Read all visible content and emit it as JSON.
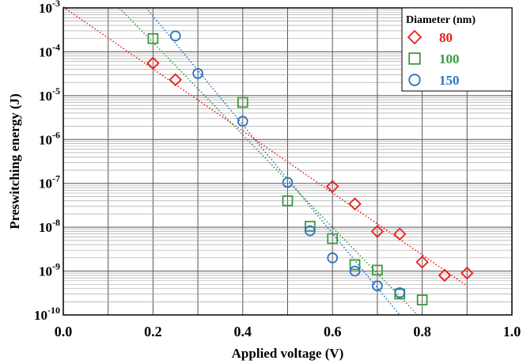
{
  "chart_data": {
    "type": "scatter",
    "xlabel": "Applied voltage (V)",
    "ylabel": "Preswitching energy (J)",
    "xlim": [
      0.0,
      1.0
    ],
    "ylim": [
      1e-10,
      0.001
    ],
    "y_scale": "log",
    "grid": true,
    "x_ticks": [
      {
        "value": 0.0,
        "label": "0.0"
      },
      {
        "value": 0.2,
        "label": "0.2"
      },
      {
        "value": 0.4,
        "label": "0.4"
      },
      {
        "value": 0.6,
        "label": "0.6"
      },
      {
        "value": 0.8,
        "label": "0.8"
      },
      {
        "value": 1.0,
        "label": "1.0"
      }
    ],
    "y_ticks": [
      {
        "value": 0.001,
        "base": "10",
        "exp": "-3"
      },
      {
        "value": 0.0001,
        "base": "10",
        "exp": "-4"
      },
      {
        "value": 1e-05,
        "base": "10",
        "exp": "-5"
      },
      {
        "value": 1e-06,
        "base": "10",
        "exp": "-6"
      },
      {
        "value": 1e-07,
        "base": "10",
        "exp": "-7"
      },
      {
        "value": 1e-08,
        "base": "10",
        "exp": "-8"
      },
      {
        "value": 1e-09,
        "base": "10",
        "exp": "-9"
      },
      {
        "value": 1e-10,
        "base": "10",
        "exp": "-10"
      }
    ],
    "legend": {
      "title": "Diameter (nm)",
      "placement": "top-right"
    },
    "series": [
      {
        "name": "80",
        "color": "#e8201c",
        "marker": "diamond",
        "points": [
          [
            0.2,
            5.5e-05
          ],
          [
            0.25,
            2.3e-05
          ],
          [
            0.6,
            8.5e-08
          ],
          [
            0.65,
            3.4e-08
          ],
          [
            0.7,
            8e-09
          ],
          [
            0.75,
            7e-09
          ],
          [
            0.8,
            1.6e-09
          ],
          [
            0.85,
            8e-10
          ],
          [
            0.9,
            9e-10
          ]
        ],
        "fit": [
          [
            0.0,
            0.00105
          ],
          [
            0.9,
            4.6e-10
          ]
        ]
      },
      {
        "name": "100",
        "color": "#3a9a3a",
        "marker": "square",
        "points": [
          [
            0.2,
            0.0002
          ],
          [
            0.4,
            7e-06
          ],
          [
            0.5,
            4e-08
          ],
          [
            0.55,
            1.05e-08
          ],
          [
            0.6,
            5.5e-09
          ],
          [
            0.65,
            1.4e-09
          ],
          [
            0.7,
            1.05e-09
          ],
          [
            0.75,
            3e-10
          ],
          [
            0.8,
            2.2e-10
          ]
        ],
        "fit": [
          [
            0.125,
            0.001
          ],
          [
            0.79,
            1e-10
          ]
        ]
      },
      {
        "name": "150",
        "color": "#2a73c0",
        "marker": "circle",
        "points": [
          [
            0.25,
            0.00023
          ],
          [
            0.3,
            3.2e-05
          ],
          [
            0.4,
            2.6e-06
          ],
          [
            0.5,
            1.05e-07
          ],
          [
            0.55,
            8.3e-09
          ],
          [
            0.6,
            2e-09
          ],
          [
            0.65,
            1e-09
          ],
          [
            0.7,
            4.6e-10
          ],
          [
            0.75,
            3.2e-10
          ]
        ],
        "fit": [
          [
            0.185,
            0.001
          ],
          [
            0.75,
            1e-10
          ]
        ]
      }
    ]
  }
}
